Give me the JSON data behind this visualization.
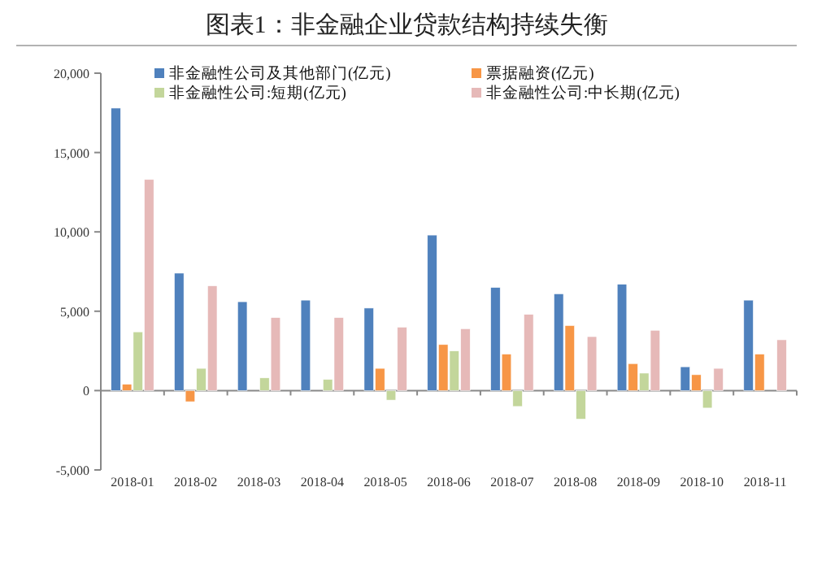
{
  "chart_data": {
    "type": "bar",
    "title": "图表1：非金融企业贷款结构持续失衡",
    "categories": [
      "2018-01",
      "2018-02",
      "2018-03",
      "2018-04",
      "2018-05",
      "2018-06",
      "2018-07",
      "2018-08",
      "2018-09",
      "2018-10",
      "2018-11"
    ],
    "series": [
      {
        "name": "非金融性公司及其他部门(亿元)",
        "color": "#4f81bd",
        "values": [
          17800,
          7400,
          5600,
          5700,
          5200,
          9800,
          6500,
          6100,
          6700,
          1500,
          5700
        ]
      },
      {
        "name": "票据融资(亿元)",
        "color": "#f79646",
        "values": [
          400,
          -700,
          0,
          0,
          1400,
          2900,
          2300,
          4100,
          1700,
          1000,
          2300
        ]
      },
      {
        "name": "非金融性公司:短期(亿元)",
        "color": "#c3d69b",
        "values": [
          3700,
          1400,
          800,
          700,
          -600,
          2500,
          -1000,
          -1800,
          1100,
          -1100,
          0
        ]
      },
      {
        "name": "非金融性公司:中长期(亿元)",
        "color": "#e6b9b8",
        "values": [
          13300,
          6600,
          4600,
          4600,
          4000,
          3900,
          4800,
          3400,
          3800,
          1400,
          3200
        ]
      }
    ],
    "ylim": [
      -5000,
      20000
    ],
    "yticks": [
      {
        "value": -5000,
        "label": "-5,000"
      },
      0,
      {
        "value": 5000,
        "label": "5,000"
      },
      {
        "value": 10000,
        "label": "10,000"
      },
      {
        "value": 15000,
        "label": "15,000"
      },
      {
        "value": 20000,
        "label": "20,000"
      }
    ],
    "legend": "top"
  }
}
